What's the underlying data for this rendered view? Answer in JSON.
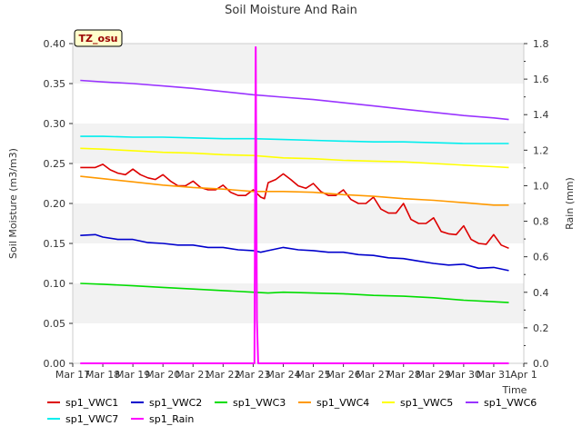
{
  "chart_data": {
    "type": "line",
    "title": "Soil Moisture And Rain",
    "xlabel": "Time",
    "ylabel": "Soil Moisture (m3/m3)",
    "y2label": "Rain (mm)",
    "site_badge": "TZ_osu",
    "x_start": "Mar 17",
    "x_ticks": [
      "Mar 17",
      "Mar 18",
      "Mar 19",
      "Mar 20",
      "Mar 21",
      "Mar 22",
      "Mar 23",
      "Mar 24",
      "Mar 25",
      "Mar 26",
      "Mar 27",
      "Mar 28",
      "Mar 29",
      "Mar 30",
      "Mar 31",
      "Apr 1"
    ],
    "xlim": [
      "Mar 17",
      "Apr 1"
    ],
    "ylim": [
      0,
      0.4
    ],
    "yticks": [
      "0.00",
      "0.05",
      "0.10",
      "0.15",
      "0.20",
      "0.25",
      "0.30",
      "0.35",
      "0.40"
    ],
    "y2lim": [
      0,
      1.8
    ],
    "y2ticks": [
      "0.0",
      "0.2",
      "0.4",
      "0.6",
      "0.8",
      "1.0",
      "1.2",
      "1.4",
      "1.6",
      "1.8"
    ],
    "grid": "horizontal bands",
    "legend_position": "bottom",
    "series": [
      {
        "name": "sp1_VWC1",
        "color": "#dd0000",
        "axis": "left",
        "points": [
          [
            "Mar 17 06:00",
            0.245
          ],
          [
            "Mar 17 12:00",
            0.245
          ],
          [
            "Mar 17 18:00",
            0.245
          ],
          [
            "Mar 18 00:00",
            0.249
          ],
          [
            "Mar 18 06:00",
            0.242
          ],
          [
            "Mar 18 12:00",
            0.238
          ],
          [
            "Mar 18 18:00",
            0.236
          ],
          [
            "Mar 19 00:00",
            0.243
          ],
          [
            "Mar 19 06:00",
            0.236
          ],
          [
            "Mar 19 12:00",
            0.232
          ],
          [
            "Mar 19 18:00",
            0.23
          ],
          [
            "Mar 20 00:00",
            0.236
          ],
          [
            "Mar 20 06:00",
            0.228
          ],
          [
            "Mar 20 12:00",
            0.222
          ],
          [
            "Mar 20 18:00",
            0.222
          ],
          [
            "Mar 21 00:00",
            0.228
          ],
          [
            "Mar 21 06:00",
            0.22
          ],
          [
            "Mar 21 12:00",
            0.217
          ],
          [
            "Mar 21 18:00",
            0.217
          ],
          [
            "Mar 22 00:00",
            0.223
          ],
          [
            "Mar 22 06:00",
            0.214
          ],
          [
            "Mar 22 12:00",
            0.21
          ],
          [
            "Mar 22 18:00",
            0.21
          ],
          [
            "Mar 23 00:00",
            0.217
          ],
          [
            "Mar 23 06:00",
            0.208
          ],
          [
            "Mar 23 09:00",
            0.206
          ],
          [
            "Mar 23 12:00",
            0.226
          ],
          [
            "Mar 23 18:00",
            0.23
          ],
          [
            "Mar 24 00:00",
            0.237
          ],
          [
            "Mar 24 06:00",
            0.23
          ],
          [
            "Mar 24 12:00",
            0.222
          ],
          [
            "Mar 24 18:00",
            0.219
          ],
          [
            "Mar 25 00:00",
            0.225
          ],
          [
            "Mar 25 06:00",
            0.215
          ],
          [
            "Mar 25 12:00",
            0.21
          ],
          [
            "Mar 25 18:00",
            0.21
          ],
          [
            "Mar 26 00:00",
            0.217
          ],
          [
            "Mar 26 06:00",
            0.205
          ],
          [
            "Mar 26 12:00",
            0.2
          ],
          [
            "Mar 26 18:00",
            0.2
          ],
          [
            "Mar 27 00:00",
            0.208
          ],
          [
            "Mar 27 06:00",
            0.193
          ],
          [
            "Mar 27 12:00",
            0.188
          ],
          [
            "Mar 27 18:00",
            0.188
          ],
          [
            "Mar 28 00:00",
            0.2
          ],
          [
            "Mar 28 06:00",
            0.18
          ],
          [
            "Mar 28 12:00",
            0.175
          ],
          [
            "Mar 28 18:00",
            0.175
          ],
          [
            "Mar 29 00:00",
            0.182
          ],
          [
            "Mar 29 06:00",
            0.165
          ],
          [
            "Mar 29 12:00",
            0.162
          ],
          [
            "Mar 29 18:00",
            0.161
          ],
          [
            "Mar 30 00:00",
            0.172
          ],
          [
            "Mar 30 06:00",
            0.155
          ],
          [
            "Mar 30 12:00",
            0.15
          ],
          [
            "Mar 30 18:00",
            0.149
          ],
          [
            "Mar 31 00:00",
            0.161
          ],
          [
            "Mar 31 06:00",
            0.148
          ],
          [
            "Mar 31 12:00",
            0.144
          ]
        ]
      },
      {
        "name": "sp1_VWC2",
        "color": "#0000cc",
        "axis": "left",
        "points": [
          [
            "Mar 17 06:00",
            0.16
          ],
          [
            "Mar 17 18:00",
            0.161
          ],
          [
            "Mar 18 00:00",
            0.158
          ],
          [
            "Mar 18 12:00",
            0.155
          ],
          [
            "Mar 19 00:00",
            0.155
          ],
          [
            "Mar 19 12:00",
            0.151
          ],
          [
            "Mar 20 00:00",
            0.15
          ],
          [
            "Mar 20 12:00",
            0.148
          ],
          [
            "Mar 21 00:00",
            0.148
          ],
          [
            "Mar 21 12:00",
            0.145
          ],
          [
            "Mar 22 00:00",
            0.145
          ],
          [
            "Mar 22 12:00",
            0.142
          ],
          [
            "Mar 23 00:00",
            0.141
          ],
          [
            "Mar 23 06:00",
            0.139
          ],
          [
            "Mar 23 12:00",
            0.141
          ],
          [
            "Mar 24 00:00",
            0.145
          ],
          [
            "Mar 24 12:00",
            0.142
          ],
          [
            "Mar 25 00:00",
            0.141
          ],
          [
            "Mar 25 12:00",
            0.139
          ],
          [
            "Mar 26 00:00",
            0.139
          ],
          [
            "Mar 26 12:00",
            0.136
          ],
          [
            "Mar 27 00:00",
            0.135
          ],
          [
            "Mar 27 12:00",
            0.132
          ],
          [
            "Mar 28 00:00",
            0.131
          ],
          [
            "Mar 28 12:00",
            0.128
          ],
          [
            "Mar 29 00:00",
            0.125
          ],
          [
            "Mar 29 12:00",
            0.123
          ],
          [
            "Mar 30 00:00",
            0.124
          ],
          [
            "Mar 30 12:00",
            0.119
          ],
          [
            "Mar 31 00:00",
            0.12
          ],
          [
            "Mar 31 12:00",
            0.116
          ]
        ]
      },
      {
        "name": "sp1_VWC3",
        "color": "#00dd00",
        "axis": "left",
        "points": [
          [
            "Mar 17 06:00",
            0.1
          ],
          [
            "Mar 18 00:00",
            0.099
          ],
          [
            "Mar 19 00:00",
            0.097
          ],
          [
            "Mar 20 00:00",
            0.095
          ],
          [
            "Mar 21 00:00",
            0.093
          ],
          [
            "Mar 22 00:00",
            0.091
          ],
          [
            "Mar 23 00:00",
            0.089
          ],
          [
            "Mar 23 12:00",
            0.088
          ],
          [
            "Mar 24 00:00",
            0.089
          ],
          [
            "Mar 25 00:00",
            0.088
          ],
          [
            "Mar 26 00:00",
            0.087
          ],
          [
            "Mar 27 00:00",
            0.085
          ],
          [
            "Mar 28 00:00",
            0.084
          ],
          [
            "Mar 29 00:00",
            0.082
          ],
          [
            "Mar 30 00:00",
            0.079
          ],
          [
            "Mar 31 00:00",
            0.077
          ],
          [
            "Mar 31 12:00",
            0.076
          ]
        ]
      },
      {
        "name": "sp1_VWC4",
        "color": "#ff9900",
        "axis": "left",
        "points": [
          [
            "Mar 17 06:00",
            0.234
          ],
          [
            "Mar 18 00:00",
            0.231
          ],
          [
            "Mar 19 00:00",
            0.227
          ],
          [
            "Mar 20 00:00",
            0.223
          ],
          [
            "Mar 21 00:00",
            0.22
          ],
          [
            "Mar 22 00:00",
            0.218
          ],
          [
            "Mar 23 00:00",
            0.215
          ],
          [
            "Mar 23 12:00",
            0.215
          ],
          [
            "Mar 24 00:00",
            0.215
          ],
          [
            "Mar 25 00:00",
            0.214
          ],
          [
            "Mar 26 00:00",
            0.211
          ],
          [
            "Mar 27 00:00",
            0.209
          ],
          [
            "Mar 28 00:00",
            0.206
          ],
          [
            "Mar 29 00:00",
            0.204
          ],
          [
            "Mar 30 00:00",
            0.201
          ],
          [
            "Mar 31 00:00",
            0.198
          ],
          [
            "Mar 31 12:00",
            0.198
          ]
        ]
      },
      {
        "name": "sp1_VWC5",
        "color": "#ffff00",
        "axis": "left",
        "points": [
          [
            "Mar 17 06:00",
            0.269
          ],
          [
            "Mar 18 00:00",
            0.268
          ],
          [
            "Mar 19 00:00",
            0.266
          ],
          [
            "Mar 20 00:00",
            0.264
          ],
          [
            "Mar 21 00:00",
            0.263
          ],
          [
            "Mar 22 00:00",
            0.261
          ],
          [
            "Mar 23 00:00",
            0.26
          ],
          [
            "Mar 24 00:00",
            0.257
          ],
          [
            "Mar 25 00:00",
            0.256
          ],
          [
            "Mar 26 00:00",
            0.254
          ],
          [
            "Mar 27 00:00",
            0.253
          ],
          [
            "Mar 28 00:00",
            0.252
          ],
          [
            "Mar 29 00:00",
            0.25
          ],
          [
            "Mar 30 00:00",
            0.248
          ],
          [
            "Mar 31 00:00",
            0.246
          ],
          [
            "Mar 31 12:00",
            0.245
          ]
        ]
      },
      {
        "name": "sp1_VWC6",
        "color": "#9933ff",
        "axis": "left",
        "points": [
          [
            "Mar 17 06:00",
            0.354
          ],
          [
            "Mar 18 00:00",
            0.352
          ],
          [
            "Mar 19 00:00",
            0.35
          ],
          [
            "Mar 20 00:00",
            0.347
          ],
          [
            "Mar 21 00:00",
            0.344
          ],
          [
            "Mar 22 00:00",
            0.34
          ],
          [
            "Mar 23 00:00",
            0.336
          ],
          [
            "Mar 24 00:00",
            0.333
          ],
          [
            "Mar 25 00:00",
            0.33
          ],
          [
            "Mar 26 00:00",
            0.326
          ],
          [
            "Mar 27 00:00",
            0.322
          ],
          [
            "Mar 28 00:00",
            0.318
          ],
          [
            "Mar 29 00:00",
            0.314
          ],
          [
            "Mar 30 00:00",
            0.31
          ],
          [
            "Mar 31 00:00",
            0.307
          ],
          [
            "Mar 31 12:00",
            0.305
          ]
        ]
      },
      {
        "name": "sp1_VWC7",
        "color": "#00eeee",
        "axis": "left",
        "points": [
          [
            "Mar 17 06:00",
            0.284
          ],
          [
            "Mar 18 00:00",
            0.284
          ],
          [
            "Mar 19 00:00",
            0.283
          ],
          [
            "Mar 20 00:00",
            0.283
          ],
          [
            "Mar 21 00:00",
            0.282
          ],
          [
            "Mar 22 00:00",
            0.281
          ],
          [
            "Mar 23 00:00",
            0.281
          ],
          [
            "Mar 24 00:00",
            0.28
          ],
          [
            "Mar 25 00:00",
            0.279
          ],
          [
            "Mar 26 00:00",
            0.278
          ],
          [
            "Mar 27 00:00",
            0.277
          ],
          [
            "Mar 28 00:00",
            0.277
          ],
          [
            "Mar 29 00:00",
            0.276
          ],
          [
            "Mar 30 00:00",
            0.275
          ],
          [
            "Mar 31 00:00",
            0.275
          ],
          [
            "Mar 31 12:00",
            0.275
          ]
        ]
      },
      {
        "name": "sp1_Rain",
        "color": "#ff00ff",
        "axis": "right",
        "points": [
          [
            "Mar 17 06:00",
            0
          ],
          [
            "Mar 23 01:00",
            0
          ],
          [
            "Mar 23 02:00",
            1.78
          ],
          [
            "Mar 23 03:00",
            0.25
          ],
          [
            "Mar 23 04:00",
            0
          ],
          [
            "Mar 31 12:00",
            0
          ]
        ]
      }
    ]
  }
}
